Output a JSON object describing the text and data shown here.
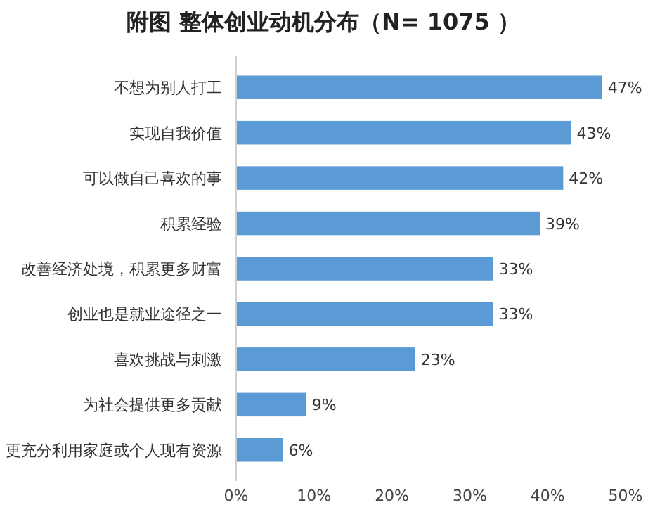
{
  "chart_data": {
    "type": "bar",
    "orientation": "horizontal",
    "title": "附图 整体创业动机分布（N= 1075 ）",
    "categories": [
      "不想为别人打工",
      "实现自我价值",
      "可以做自己喜欢的事",
      "积累经验",
      "改善经济处境，积累更多财富",
      "创业也是就业途径之一",
      "喜欢挑战与刺激",
      "为社会提供更多贡献",
      "更充分利用家庭或个人现有资源"
    ],
    "values": [
      47,
      43,
      42,
      39,
      33,
      33,
      23,
      9,
      6
    ],
    "value_labels": [
      "47%",
      "43%",
      "42%",
      "39%",
      "33%",
      "33%",
      "23%",
      "9%",
      "6%"
    ],
    "color": "#5b9bd5",
    "xlim": [
      0,
      50
    ],
    "xticks": [
      {
        "value": 0,
        "label": "0%"
      },
      {
        "value": 10,
        "label": "10%"
      },
      {
        "value": 20,
        "label": "20%"
      },
      {
        "value": 30,
        "label": "30%"
      },
      {
        "value": 40,
        "label": "40%"
      },
      {
        "value": 50,
        "label": "50%"
      }
    ]
  }
}
